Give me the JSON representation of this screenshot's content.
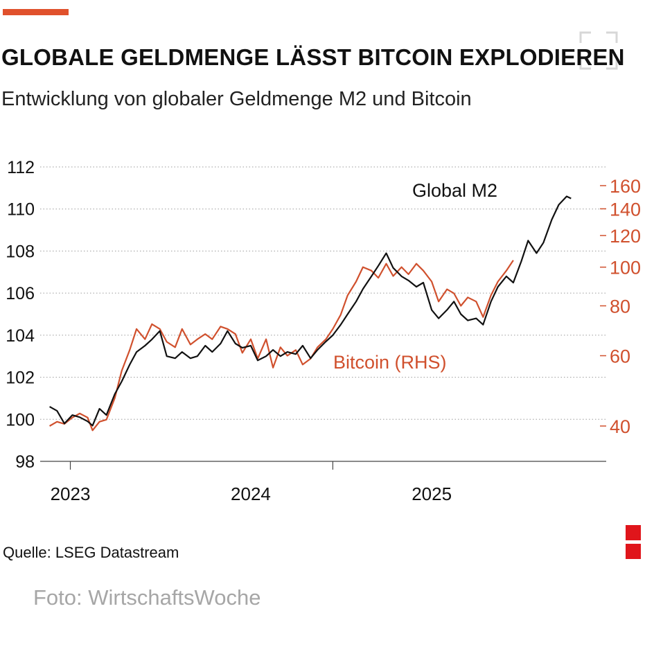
{
  "header": {
    "title": "GLOBALE GELDMENGE LÄSST BITCOIN EXPLODIEREN",
    "subtitle": "Entwicklung von globaler Geldmenge M2 und Bitcoin"
  },
  "footer": {
    "source": "Quelle: LSEG Datastream",
    "photo_credit": "Foto: WirtschaftsWoche"
  },
  "colors": {
    "accent": "#e0512c",
    "m2": "#111111",
    "bitcoin": "#d0502d",
    "brand": "#e0151b"
  },
  "icons": {
    "top_right": "fullscreen-icon",
    "bottom_right": "brand-logo"
  },
  "chart_data": {
    "type": "line",
    "title": "GLOBALE GELDMENGE LÄSST BITCOIN EXPLODIEREN",
    "subtitle": "Entwicklung von globaler Geldmenge M2 und Bitcoin",
    "x_ticks": [
      "2023",
      "2024",
      "2025"
    ],
    "x_range": [
      "2022-11",
      "2025-12"
    ],
    "y_left": {
      "min": 98,
      "max": 112,
      "ticks": [
        "98",
        "100",
        "102",
        "104",
        "106",
        "108",
        "110",
        "112"
      ]
    },
    "y_right": {
      "scale": "log",
      "ticks": [
        "40",
        "60",
        "80",
        "100",
        "120",
        "140",
        "160"
      ]
    },
    "grid": true,
    "series": [
      {
        "name": "Global M2",
        "axis": "left",
        "x": [
          "2022-11-20",
          "2022-12-05",
          "2022-12-20",
          "2023-01-05",
          "2023-01-20",
          "2023-02-05",
          "2023-02-15",
          "2023-03-01",
          "2023-03-15",
          "2023-04-01",
          "2023-04-15",
          "2023-05-01",
          "2023-05-15",
          "2023-06-01",
          "2023-06-15",
          "2023-07-01",
          "2023-07-15",
          "2023-08-01",
          "2023-08-15",
          "2023-09-01",
          "2023-09-15",
          "2023-10-01",
          "2023-10-15",
          "2023-11-01",
          "2023-11-15",
          "2023-12-01",
          "2023-12-15",
          "2024-01-01",
          "2024-01-15",
          "2024-02-01",
          "2024-02-15",
          "2024-03-01",
          "2024-03-15",
          "2024-04-01",
          "2024-04-15",
          "2024-05-01",
          "2024-05-15",
          "2024-06-01",
          "2024-06-15",
          "2024-07-01",
          "2024-07-15",
          "2024-08-01",
          "2024-08-15",
          "2024-09-01",
          "2024-09-15",
          "2024-10-01",
          "2024-10-15",
          "2024-11-01",
          "2024-11-15",
          "2024-12-01",
          "2024-12-15",
          "2025-01-01",
          "2025-01-15",
          "2025-02-01",
          "2025-02-15",
          "2025-03-01",
          "2025-03-15",
          "2025-04-01",
          "2025-04-15",
          "2025-05-01",
          "2025-05-15",
          "2025-06-01",
          "2025-06-15",
          "2025-07-01",
          "2025-07-15",
          "2025-08-01",
          "2025-08-15",
          "2025-09-01",
          "2025-09-15",
          "2025-10-01",
          "2025-10-10"
        ],
        "values": [
          100.6,
          100.4,
          99.8,
          100.2,
          100.1,
          99.9,
          99.7,
          100.5,
          100.2,
          101.2,
          101.8,
          102.6,
          103.2,
          103.5,
          103.8,
          104.2,
          103.0,
          102.9,
          103.2,
          102.9,
          103.0,
          103.5,
          103.2,
          103.6,
          104.2,
          103.6,
          103.4,
          103.5,
          102.8,
          103.0,
          103.3,
          103.0,
          103.2,
          103.1,
          103.5,
          102.9,
          103.3,
          103.7,
          104.0,
          104.5,
          105.0,
          105.6,
          106.2,
          106.8,
          107.3,
          107.9,
          107.2,
          106.8,
          106.6,
          106.3,
          106.5,
          105.2,
          104.8,
          105.2,
          105.6,
          105.0,
          104.7,
          104.8,
          104.5,
          105.6,
          106.3,
          106.8,
          106.5,
          107.5,
          108.5,
          107.9,
          108.4,
          109.5,
          110.2,
          110.6,
          110.5
        ]
      },
      {
        "name": "Bitcoin (RHS)",
        "axis": "right",
        "x": [
          "2022-11-20",
          "2022-12-05",
          "2022-12-20",
          "2023-01-05",
          "2023-01-20",
          "2023-02-05",
          "2023-02-15",
          "2023-03-01",
          "2023-03-15",
          "2023-04-01",
          "2023-04-15",
          "2023-05-01",
          "2023-05-15",
          "2023-06-01",
          "2023-06-15",
          "2023-07-01",
          "2023-07-15",
          "2023-08-01",
          "2023-08-15",
          "2023-09-01",
          "2023-09-15",
          "2023-10-01",
          "2023-10-15",
          "2023-11-01",
          "2023-11-15",
          "2023-12-01",
          "2023-12-15",
          "2024-01-01",
          "2024-01-15",
          "2024-02-01",
          "2024-02-15",
          "2024-03-01",
          "2024-03-15",
          "2024-04-01",
          "2024-04-15",
          "2024-05-01",
          "2024-05-15",
          "2024-06-01",
          "2024-06-15",
          "2024-07-01",
          "2024-07-15",
          "2024-08-01",
          "2024-08-15",
          "2024-09-01",
          "2024-09-15",
          "2024-10-01",
          "2024-10-15",
          "2024-11-01",
          "2024-11-15",
          "2024-12-01",
          "2024-12-15",
          "2025-01-01",
          "2025-01-15",
          "2025-02-01",
          "2025-02-15",
          "2025-03-01",
          "2025-03-15",
          "2025-04-01",
          "2025-04-15",
          "2025-05-01",
          "2025-05-15",
          "2025-06-01",
          "2025-06-15"
        ],
        "values": [
          40,
          41,
          40.5,
          42,
          43,
          42,
          39,
          41,
          41.5,
          47,
          55,
          62,
          70,
          66,
          72,
          70,
          65,
          63,
          70,
          64,
          66,
          68,
          66,
          71,
          70,
          68,
          61,
          66,
          59,
          66,
          56,
          63,
          60,
          62,
          57,
          59,
          63,
          66,
          70,
          76,
          85,
          92,
          100,
          98,
          94,
          102,
          95,
          100,
          96,
          102,
          98,
          92,
          82,
          88,
          86,
          80,
          84,
          82,
          75,
          85,
          92,
          98,
          104
        ]
      }
    ]
  }
}
